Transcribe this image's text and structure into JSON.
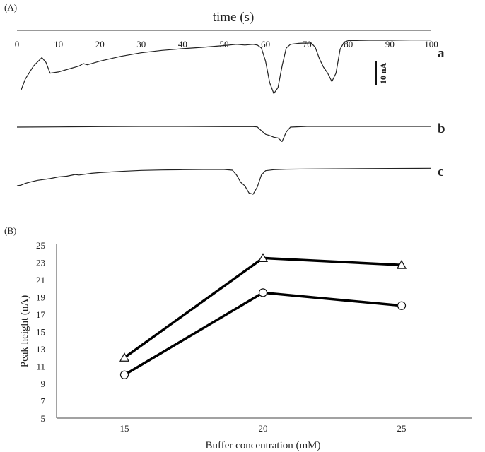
{
  "chart_data": [
    {
      "panel": "(A)",
      "type": "line",
      "xlabel": "time (s)",
      "xlim": [
        0,
        100
      ],
      "xticks": [
        0,
        10,
        20,
        30,
        40,
        50,
        60,
        70,
        80,
        90,
        100
      ],
      "scale_bar": "10 nA",
      "series": [
        {
          "name": "a",
          "x": [
            1,
            2,
            4,
            6,
            7,
            8,
            10,
            12,
            15,
            16,
            17,
            20,
            25,
            30,
            35,
            40,
            45,
            50,
            53,
            55,
            57,
            58,
            59,
            60,
            61,
            62,
            63,
            64,
            65,
            66,
            67,
            68,
            69,
            70,
            71,
            72,
            73,
            74,
            75,
            76,
            77,
            78,
            79,
            80,
            82,
            85,
            90,
            95,
            100
          ],
          "y": [
            -16,
            -11.5,
            -6,
            -2.5,
            -4.5,
            -9,
            -8.5,
            -7.5,
            -6,
            -5,
            -5.5,
            -4,
            -2,
            -0.5,
            0.5,
            1.2,
            1.8,
            2.5,
            3,
            2.7,
            3,
            2.7,
            1.5,
            -4,
            -13,
            -17.5,
            -15,
            -6,
            1.5,
            3,
            3.2,
            3.4,
            3.5,
            3.5,
            3.6,
            1.8,
            -3,
            -6.5,
            -9,
            -12.5,
            -9,
            1,
            4,
            4.6,
            4.6,
            4.7,
            4.7,
            4.8,
            4.8
          ]
        },
        {
          "name": "b",
          "x": [
            0,
            10,
            20,
            30,
            40,
            50,
            57,
            58,
            59,
            60,
            61,
            62,
            63,
            64,
            65,
            66,
            70,
            80,
            90,
            100
          ],
          "y": [
            0,
            0.1,
            0.2,
            0.3,
            0.3,
            0.2,
            0.2,
            0.1,
            -1.5,
            -3,
            -3.5,
            -4.2,
            -4.5,
            -6,
            -2,
            0,
            0.3,
            0.3,
            0.3,
            0.3
          ]
        },
        {
          "name": "c",
          "x": [
            0,
            1,
            2,
            3,
            5,
            8,
            10,
            12,
            14,
            15,
            18,
            20,
            25,
            30,
            35,
            40,
            45,
            50,
            52,
            53,
            54,
            55,
            56,
            57,
            58,
            59,
            60,
            62,
            65,
            70,
            80,
            90,
            100
          ],
          "y": [
            -6.5,
            -6.2,
            -5.5,
            -5,
            -4.2,
            -3.5,
            -2.8,
            -2.5,
            -1.8,
            -2,
            -1.3,
            -1,
            -0.5,
            -0.1,
            0.1,
            0.2,
            0.3,
            0.3,
            0,
            -2,
            -5,
            -6.5,
            -9.5,
            -10,
            -7,
            -2,
            -0.2,
            0.2,
            0.4,
            0.5,
            0.6,
            0.7,
            0.8
          ]
        }
      ]
    },
    {
      "panel": "(B)",
      "type": "line",
      "xlabel": "Buffer concentration (mM)",
      "ylabel": "Peak height (nA)",
      "categories": [
        "15",
        "20",
        "25"
      ],
      "ylim": [
        5,
        25
      ],
      "yticks": [
        5,
        7,
        9,
        11,
        13,
        15,
        17,
        19,
        21,
        23,
        25
      ],
      "series": [
        {
          "name": "triangle",
          "marker": "triangle",
          "values": [
            12,
            23.5,
            22.7
          ]
        },
        {
          "name": "circle",
          "marker": "circle",
          "values": [
            10,
            19.5,
            18
          ]
        }
      ]
    }
  ]
}
